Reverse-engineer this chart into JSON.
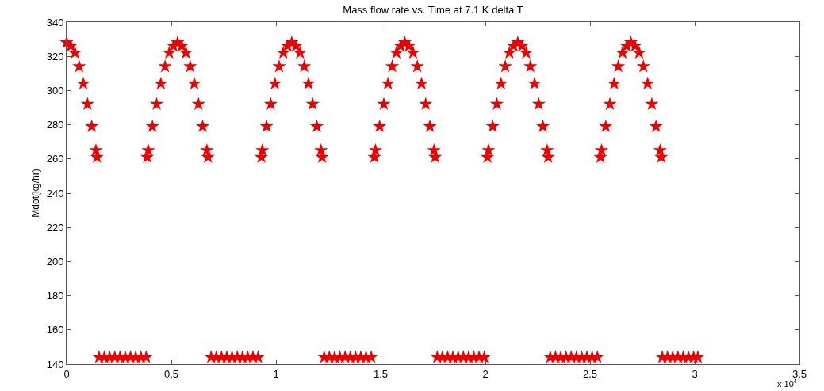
{
  "chart_data": {
    "type": "scatter",
    "title": "Mass flow rate vs. Time at 7.1 K delta T",
    "ylabel": "Mdot(kg/hr)",
    "annotations": [
      "x 10$^{4}$"
    ],
    "xlim": [
      0,
      3.5
    ],
    "xticks": [
      0,
      0.5,
      1,
      1.5,
      2,
      2.5,
      3,
      3.5
    ],
    "ylim": [
      140,
      340
    ],
    "yticks": [
      140,
      160,
      180,
      200,
      220,
      240,
      260,
      280,
      300,
      320,
      340
    ],
    "grid": false,
    "marker": "star",
    "series": [
      {
        "color": "#ee0000",
        "x": [
          0,
          0.02,
          0.04,
          0.06,
          0.08,
          0.1,
          0.12,
          0.14,
          0.145,
          0.155,
          0.18,
          0.205,
          0.23,
          0.255,
          0.28,
          0.305,
          0.33,
          0.355,
          0.38,
          0.385,
          0.39,
          0.41,
          0.43,
          0.45,
          0.47,
          0.49,
          0.51,
          0.53,
          0.55,
          0.57,
          0.59,
          0.61,
          0.63,
          0.65,
          0.67,
          0.675,
          0.69,
          0.715,
          0.74,
          0.765,
          0.79,
          0.815,
          0.84,
          0.865,
          0.89,
          0.915,
          0.93,
          0.935,
          0.955,
          0.975,
          0.995,
          1.015,
          1.035,
          1.055,
          1.075,
          1.095,
          1.115,
          1.135,
          1.155,
          1.175,
          1.195,
          1.215,
          1.22,
          1.23,
          1.255,
          1.28,
          1.305,
          1.33,
          1.355,
          1.38,
          1.405,
          1.43,
          1.455,
          1.47,
          1.475,
          1.495,
          1.515,
          1.535,
          1.555,
          1.575,
          1.595,
          1.615,
          1.635,
          1.655,
          1.675,
          1.695,
          1.715,
          1.735,
          1.755,
          1.76,
          1.77,
          1.795,
          1.82,
          1.845,
          1.87,
          1.895,
          1.92,
          1.945,
          1.97,
          1.995,
          2.01,
          2.015,
          2.035,
          2.055,
          2.075,
          2.095,
          2.115,
          2.135,
          2.155,
          2.175,
          2.195,
          2.215,
          2.235,
          2.255,
          2.275,
          2.295,
          2.3,
          2.31,
          2.335,
          2.36,
          2.385,
          2.41,
          2.435,
          2.46,
          2.485,
          2.51,
          2.535,
          2.55,
          2.555,
          2.575,
          2.595,
          2.615,
          2.635,
          2.655,
          2.675,
          2.695,
          2.715,
          2.735,
          2.755,
          2.775,
          2.795,
          2.815,
          2.835,
          2.84,
          2.845,
          2.87,
          2.895,
          2.92,
          2.945,
          2.97,
          2.995,
          3.015
        ],
        "values": [
          328,
          326,
          322,
          314,
          304,
          292,
          279,
          265,
          261,
          144,
          144,
          144,
          144,
          144,
          144,
          144,
          144,
          144,
          144,
          261,
          265,
          279,
          292,
          304,
          314,
          322,
          326,
          328,
          326,
          322,
          314,
          304,
          292,
          279,
          265,
          261,
          144,
          144,
          144,
          144,
          144,
          144,
          144,
          144,
          144,
          144,
          261,
          265,
          279,
          292,
          304,
          314,
          322,
          326,
          328,
          326,
          322,
          314,
          304,
          292,
          279,
          265,
          261,
          144,
          144,
          144,
          144,
          144,
          144,
          144,
          144,
          144,
          144,
          261,
          265,
          279,
          292,
          304,
          314,
          322,
          326,
          328,
          326,
          322,
          314,
          304,
          292,
          279,
          265,
          261,
          144,
          144,
          144,
          144,
          144,
          144,
          144,
          144,
          144,
          144,
          261,
          265,
          279,
          292,
          304,
          314,
          322,
          326,
          328,
          326,
          322,
          314,
          304,
          292,
          279,
          265,
          261,
          144,
          144,
          144,
          144,
          144,
          144,
          144,
          144,
          144,
          144,
          261,
          265,
          279,
          292,
          304,
          314,
          322,
          326,
          328,
          326,
          322,
          314,
          304,
          292,
          279,
          265,
          261,
          144,
          144,
          144,
          144,
          144,
          144,
          144,
          144
        ]
      }
    ]
  }
}
